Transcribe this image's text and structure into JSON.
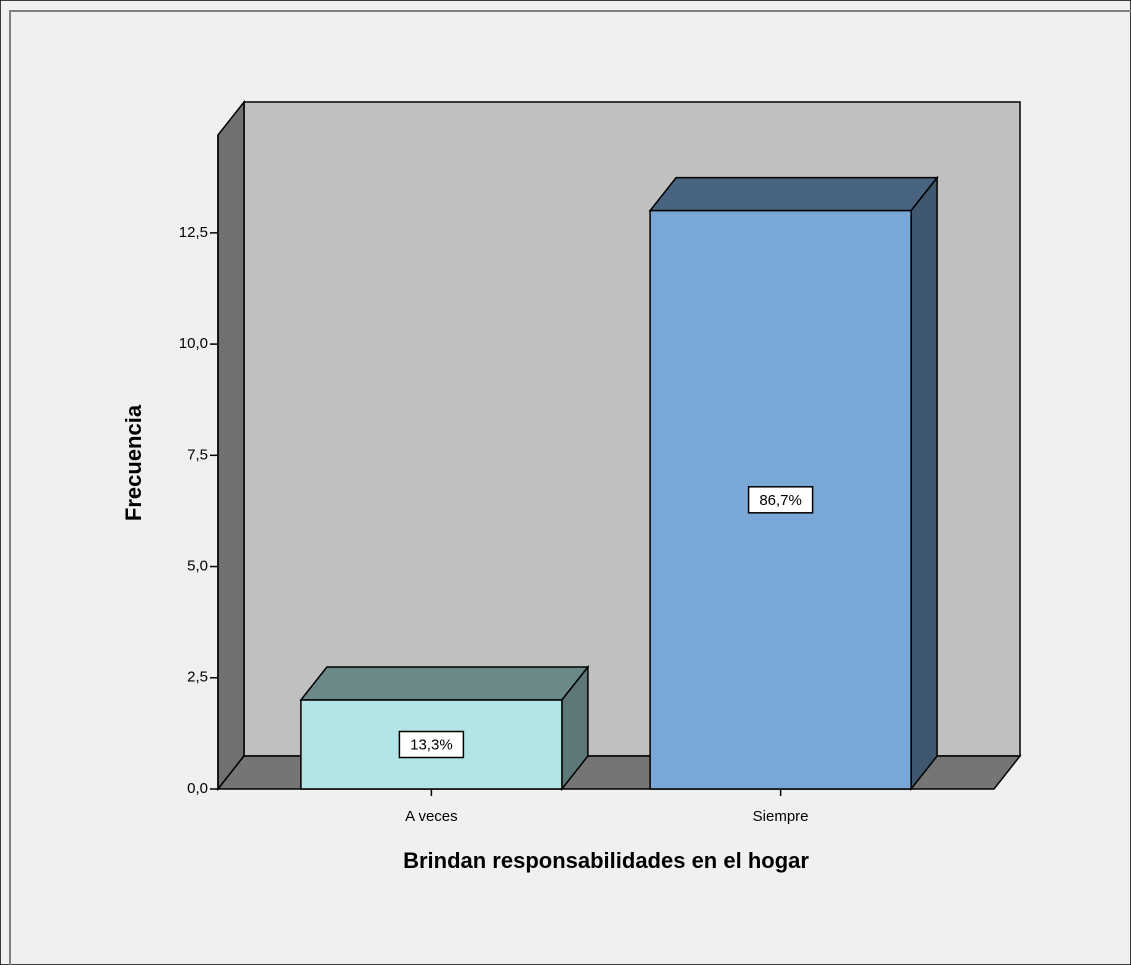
{
  "chart_data": {
    "type": "bar3d",
    "x_label": "Brindan responsabilidades en el hogar",
    "y_label": "Frecuencia",
    "categories": [
      "A veces",
      "Siempre"
    ],
    "values": [
      2,
      13
    ],
    "annotations": [
      "13,3%",
      "86,7%"
    ],
    "colors": [
      "#b4e5e6",
      "#79a7d6"
    ],
    "ylim": [
      0,
      14.7
    ],
    "yticks": [
      {
        "value": 0,
        "label": "0,0"
      },
      {
        "value": 2.5,
        "label": "2,5"
      },
      {
        "value": 5,
        "label": "5,0"
      },
      {
        "value": 7.5,
        "label": "7,5"
      },
      {
        "value": 10,
        "label": "10,0"
      },
      {
        "value": 12.5,
        "label": "12,5"
      }
    ]
  }
}
